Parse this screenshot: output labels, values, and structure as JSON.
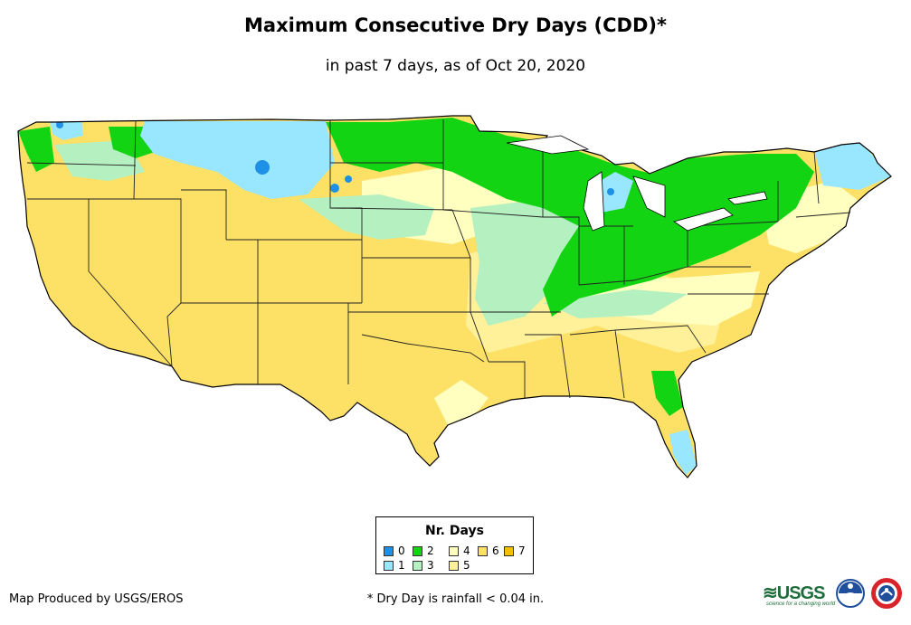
{
  "title": "Maximum Consecutive Dry Days (CDD)*",
  "subtitle": "in past 7 days, as of Oct 20, 2020",
  "legend": {
    "title": "Nr. Days",
    "items": [
      {
        "label": "0",
        "color": "#1e90e6",
        "days": 0
      },
      {
        "label": "1",
        "color": "#99e6ff",
        "days": 1
      },
      {
        "label": "2",
        "color": "#12d412",
        "days": 2
      },
      {
        "label": "3",
        "color": "#b4f0c0",
        "days": 3
      },
      {
        "label": "4",
        "color": "#ffffc0",
        "days": 4
      },
      {
        "label": "5",
        "color": "#fff09a",
        "days": 5
      },
      {
        "label": "6",
        "color": "#fde066",
        "days": 6
      },
      {
        "label": "7",
        "color": "#f5c000",
        "days": 7
      }
    ]
  },
  "credit": "Map Produced by USGS/EROS",
  "footnote": "* Dry Day is rainfall < 0.04 in.",
  "logos": {
    "usgs_mark": "≋USGS",
    "usgs_tagline": "science for a changing world"
  }
}
